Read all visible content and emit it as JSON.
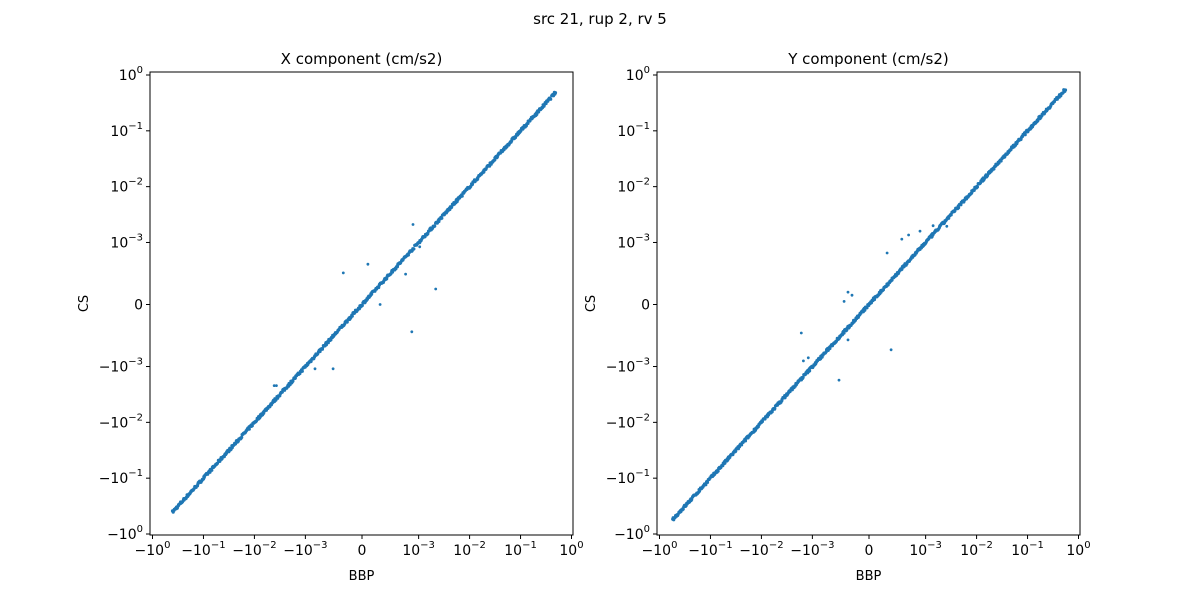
{
  "figure_title": "src 21, rup 2, rv 5",
  "color": "#1f77b4",
  "chart_data": [
    {
      "type": "scatter",
      "title": "X component (cm/s2)",
      "xlabel": "BBP",
      "ylabel": "CS",
      "xscale": "symlog",
      "yscale": "symlog",
      "linthresh": 0.001,
      "xlim": [
        -1,
        1
      ],
      "ylim": [
        -1,
        1
      ],
      "xticks": [
        {
          "base": "−10",
          "exp": "0",
          "v": -1
        },
        {
          "base": "−10",
          "exp": "−1",
          "v": -0.1
        },
        {
          "base": "−10",
          "exp": "−2",
          "v": -0.01
        },
        {
          "base": "−10",
          "exp": "−3",
          "v": -0.001
        },
        {
          "base": "0",
          "exp": "",
          "v": 0
        },
        {
          "base": "10",
          "exp": "−3",
          "v": 0.001
        },
        {
          "base": "10",
          "exp": "−2",
          "v": 0.01
        },
        {
          "base": "10",
          "exp": "−1",
          "v": 0.1
        },
        {
          "base": "10",
          "exp": "0",
          "v": 1
        }
      ],
      "yticks": [
        {
          "base": "−10",
          "exp": "0",
          "v": -1
        },
        {
          "base": "−10",
          "exp": "−1",
          "v": -0.1
        },
        {
          "base": "−10",
          "exp": "−2",
          "v": -0.01
        },
        {
          "base": "−10",
          "exp": "−3",
          "v": -0.001
        },
        {
          "base": "0",
          "exp": "",
          "v": 0
        },
        {
          "base": "10",
          "exp": "−3",
          "v": 0.001
        },
        {
          "base": "10",
          "exp": "−2",
          "v": 0.01
        },
        {
          "base": "10",
          "exp": "−1",
          "v": 0.1
        },
        {
          "base": "10",
          "exp": "0",
          "v": 1
        }
      ],
      "diagonal_range": [
        -0.4,
        0.48
      ],
      "outliers": [
        [
          -0.00033,
          0.00051
        ],
        [
          0.000105,
          0.00065
        ],
        [
          0.0009,
          0.0021
        ],
        [
          0.00216,
          0.00025
        ],
        [
          0.00088,
          -0.00044
        ],
        [
          0.00032,
          0.0
        ],
        [
          -0.00083,
          -0.0011
        ],
        [
          -0.00051,
          -0.0011
        ],
        [
          0.00077,
          0.00049
        ],
        [
          0.00105,
          0.00093
        ],
        [
          -0.0041,
          -0.0022
        ],
        [
          -0.0037,
          -0.0022
        ]
      ]
    },
    {
      "type": "scatter",
      "title": "Y component (cm/s2)",
      "xlabel": "BBP",
      "ylabel": "CS",
      "xscale": "symlog",
      "yscale": "symlog",
      "linthresh": 0.001,
      "xlim": [
        -1,
        1
      ],
      "ylim": [
        -1,
        1
      ],
      "xticks": [
        {
          "base": "−10",
          "exp": "0",
          "v": -1
        },
        {
          "base": "−10",
          "exp": "−1",
          "v": -0.1
        },
        {
          "base": "−10",
          "exp": "−2",
          "v": -0.01
        },
        {
          "base": "−10",
          "exp": "−3",
          "v": -0.001
        },
        {
          "base": "0",
          "exp": "",
          "v": 0
        },
        {
          "base": "10",
          "exp": "−3",
          "v": 0.001
        },
        {
          "base": "10",
          "exp": "−2",
          "v": 0.01
        },
        {
          "base": "10",
          "exp": "−1",
          "v": 0.1
        },
        {
          "base": "10",
          "exp": "0",
          "v": 1
        }
      ],
      "yticks": [
        {
          "base": "−10",
          "exp": "0",
          "v": -1
        },
        {
          "base": "−10",
          "exp": "−1",
          "v": -0.1
        },
        {
          "base": "−10",
          "exp": "−2",
          "v": -0.01
        },
        {
          "base": "−10",
          "exp": "−3",
          "v": -0.001
        },
        {
          "base": "0",
          "exp": "",
          "v": 0
        },
        {
          "base": "10",
          "exp": "−3",
          "v": 0.001
        },
        {
          "base": "10",
          "exp": "−2",
          "v": 0.01
        },
        {
          "base": "10",
          "exp": "−1",
          "v": 0.1
        },
        {
          "base": "10",
          "exp": "0",
          "v": 1
        }
      ],
      "diagonal_range": [
        -0.55,
        0.55
      ],
      "outliers": [
        [
          0.00032,
          0.00083
        ],
        [
          0.00058,
          0.00115
        ],
        [
          0.0007,
          0.00136
        ],
        [
          0.0009,
          0.0016
        ],
        [
          -0.00037,
          0.0002
        ],
        [
          -0.0003,
          0.00015
        ],
        [
          -0.00044,
          5e-05
        ],
        [
          -0.00037,
          -0.00057
        ],
        [
          0.00039,
          -0.00073
        ],
        [
          -0.00165,
          -0.00046
        ],
        [
          -0.00053,
          -0.00175
        ],
        [
          -0.0015,
          -0.00091
        ],
        [
          -0.0012,
          -0.00086
        ],
        [
          0.0026,
          0.00195
        ],
        [
          0.0014,
          0.002
        ]
      ]
    }
  ]
}
